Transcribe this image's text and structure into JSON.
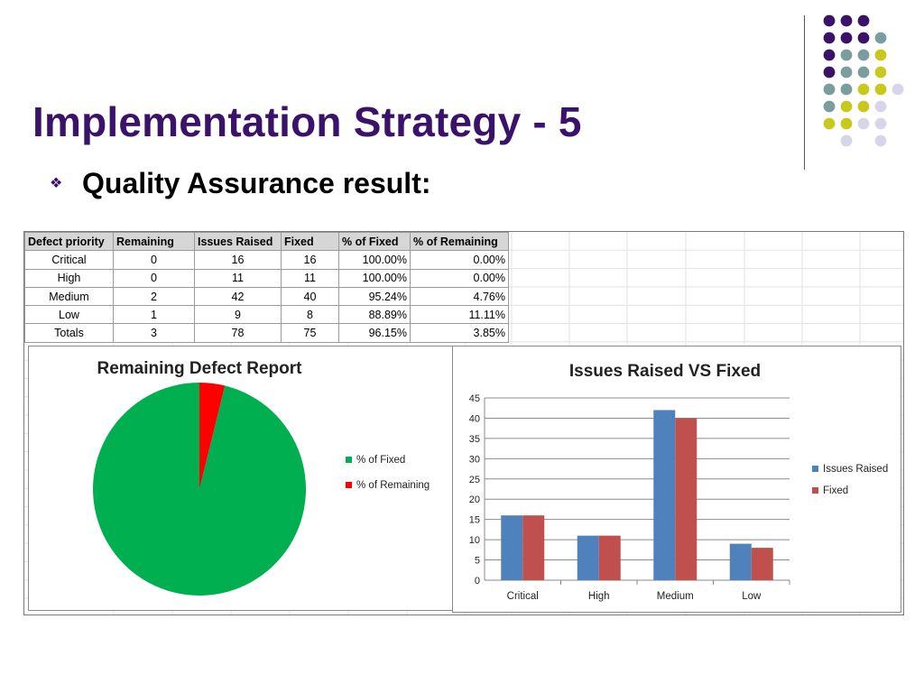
{
  "slide": {
    "title": "Implementation Strategy - 5",
    "bullet_icon": "diamond-bullet-icon",
    "bullet_text": "Quality Assurance result:"
  },
  "decor": {
    "dot_colors": [
      "#3b1269",
      "#7a9e9e",
      "#c9c81d",
      "#d7d6e8"
    ],
    "grid": [
      [
        0,
        0,
        0,
        -1
      ],
      [
        0,
        0,
        0,
        1
      ],
      [
        0,
        1,
        1,
        2
      ],
      [
        0,
        1,
        1,
        2
      ],
      [
        1,
        1,
        2,
        2,
        3
      ],
      [
        1,
        2,
        2,
        3
      ],
      [
        2,
        2,
        3,
        3
      ],
      [
        -1,
        3,
        -1,
        3
      ]
    ]
  },
  "table": {
    "headers": [
      "Defect priority",
      "Remaining",
      "Issues Raised",
      "Fixed",
      "% of Fixed",
      "% of Remaining"
    ],
    "rows": [
      [
        "Critical",
        "0",
        "16",
        "16",
        "100.00%",
        "0.00%"
      ],
      [
        "High",
        "0",
        "11",
        "11",
        "100.00%",
        "0.00%"
      ],
      [
        "Medium",
        "2",
        "42",
        "40",
        "95.24%",
        "4.76%"
      ],
      [
        "Low",
        "1",
        "9",
        "8",
        "88.89%",
        "11.11%"
      ],
      [
        "Totals",
        "3",
        "78",
        "75",
        "96.15%",
        "3.85%"
      ]
    ]
  },
  "chart_data": [
    {
      "type": "pie",
      "title": "Remaining Defect Report",
      "labels": [
        "% of Fixed",
        "% of Remaining"
      ],
      "values": [
        96.15,
        3.85
      ],
      "colors": [
        "#00b050",
        "#ff0000"
      ],
      "legend": "right"
    },
    {
      "type": "bar",
      "title": "Issues Raised VS Fixed",
      "categories": [
        "Critical",
        "High",
        "Medium",
        "Low"
      ],
      "series": [
        {
          "name": "Issues Raised",
          "values": [
            16,
            11,
            42,
            9
          ],
          "color": "#4f81bd"
        },
        {
          "name": "Fixed",
          "values": [
            16,
            11,
            40,
            8
          ],
          "color": "#c0504d"
        }
      ],
      "ylim": [
        0,
        45
      ],
      "yticks": [
        0,
        5,
        10,
        15,
        20,
        25,
        30,
        35,
        40,
        45
      ],
      "grid": true,
      "legend": "right"
    }
  ]
}
